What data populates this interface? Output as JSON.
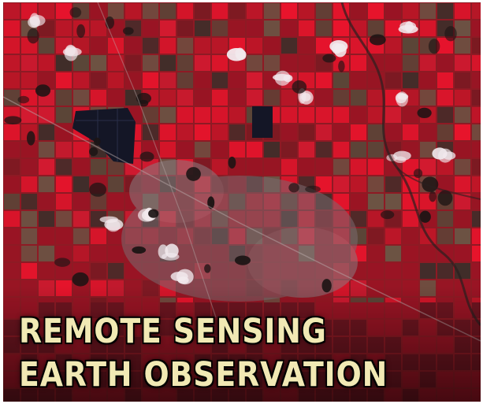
{
  "caption": {
    "line1": "REMOTE SENSING",
    "line2": "EARTH OBSERVATION"
  },
  "colors": {
    "vegetation_red": "#e8142c",
    "deep_red": "#9a1424",
    "bare_soil_brown": "#5a4638",
    "water_dark": "#141626",
    "urban_grey": "#8a7c80",
    "caption_text": "#f1e9b4"
  }
}
